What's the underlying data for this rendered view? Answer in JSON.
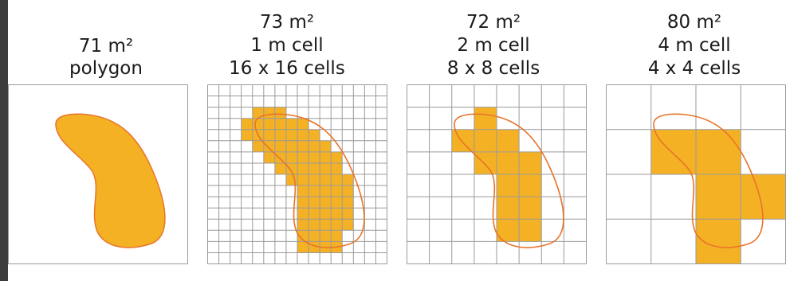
{
  "panels": [
    {
      "area": "71 m²",
      "cell": "",
      "cells": "",
      "caption": "polygon",
      "grid_n": 0
    },
    {
      "area": "73 m²",
      "cell": "1 m cell",
      "cells": "16 x 16 cells",
      "caption": "",
      "grid_n": 16
    },
    {
      "area": "72 m²",
      "cell": "2 m cell",
      "cells": "8 x 8 cells",
      "caption": "",
      "grid_n": 8
    },
    {
      "area": "80 m²",
      "cell": "4 m cell",
      "cells": "4 x 4 cells",
      "caption": "",
      "grid_n": 4
    }
  ],
  "colors": {
    "fill": "#f4b124",
    "outline": "#e8742a",
    "grid": "#9a9a9a",
    "border_left": "#3d3d3d"
  }
}
